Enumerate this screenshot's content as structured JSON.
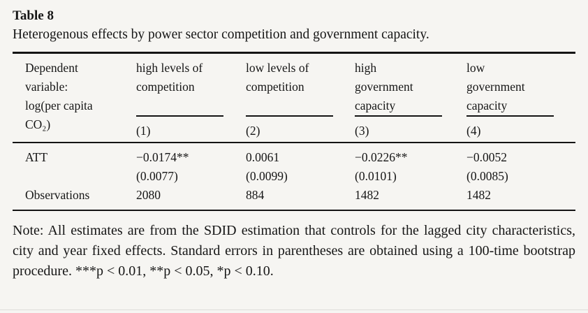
{
  "document": {
    "title": "Table 8",
    "caption": "Heterogenous effects by power sector competition and government capacity.",
    "note": "Note: All estimates are from the SDID estimation that controls for the lagged city characteristics, city and year fixed effects. Standard errors in parentheses are obtained using a 100-time bootstrap procedure. ***p < 0.01, **p < 0.05, *p < 0.10."
  },
  "table": {
    "stub_header": "Dependent\nvariable:\nlog(per capita\nCO₂)",
    "columns": [
      {
        "label": "high levels of\ncompetition",
        "number": "(1)"
      },
      {
        "label": "low levels of\ncompetition",
        "number": "(2)"
      },
      {
        "label": "high\ngovernment\ncapacity",
        "number": "(3)"
      },
      {
        "label": "low\ngovernment\ncapacity",
        "number": "(4)"
      }
    ],
    "rows": [
      {
        "label": "ATT",
        "values": [
          "−0.0174**",
          "0.0061",
          "−0.0226**",
          "−0.0052"
        ]
      },
      {
        "label": "",
        "values": [
          "(0.0077)",
          "(0.0099)",
          "(0.0101)",
          "(0.0085)"
        ]
      },
      {
        "label": "Observations",
        "values": [
          "2080",
          "884",
          "1482",
          "1482"
        ]
      }
    ]
  },
  "colors": {
    "background": "#f6f5f2",
    "text": "#161616",
    "rule": "#141414"
  }
}
